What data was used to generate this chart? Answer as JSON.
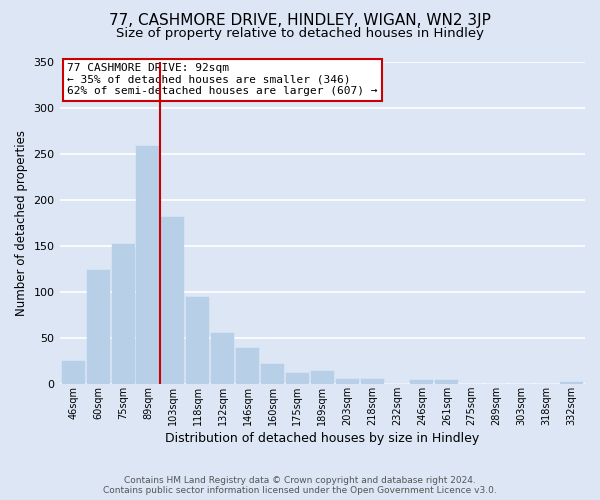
{
  "title": "77, CASHMORE DRIVE, HINDLEY, WIGAN, WN2 3JP",
  "subtitle": "Size of property relative to detached houses in Hindley",
  "xlabel": "Distribution of detached houses by size in Hindley",
  "ylabel": "Number of detached properties",
  "footer_line1": "Contains HM Land Registry data © Crown copyright and database right 2024.",
  "footer_line2": "Contains public sector information licensed under the Open Government Licence v3.0.",
  "categories": [
    "46sqm",
    "60sqm",
    "75sqm",
    "89sqm",
    "103sqm",
    "118sqm",
    "132sqm",
    "146sqm",
    "160sqm",
    "175sqm",
    "189sqm",
    "203sqm",
    "218sqm",
    "232sqm",
    "246sqm",
    "261sqm",
    "275sqm",
    "289sqm",
    "303sqm",
    "318sqm",
    "332sqm"
  ],
  "values": [
    25,
    124,
    152,
    258,
    181,
    95,
    56,
    39,
    22,
    12,
    14,
    6,
    6,
    0,
    5,
    5,
    0,
    0,
    0,
    0,
    2
  ],
  "bar_color": "#b8cfe8",
  "bar_edge_color": "#b8cfe8",
  "vline_x": 3.5,
  "vline_color": "#cc0000",
  "annotation_title": "77 CASHMORE DRIVE: 92sqm",
  "annotation_line1": "← 35% of detached houses are smaller (346)",
  "annotation_line2": "62% of semi-detached houses are larger (607) →",
  "annotation_box_color": "#ffffff",
  "annotation_box_edge": "#cc0000",
  "ylim": [
    0,
    350
  ],
  "yticks": [
    0,
    50,
    100,
    150,
    200,
    250,
    300,
    350
  ],
  "background_color": "#dce6f5",
  "plot_background": "#dce6f5",
  "grid_color": "#ffffff",
  "title_fontsize": 11,
  "subtitle_fontsize": 9.5
}
